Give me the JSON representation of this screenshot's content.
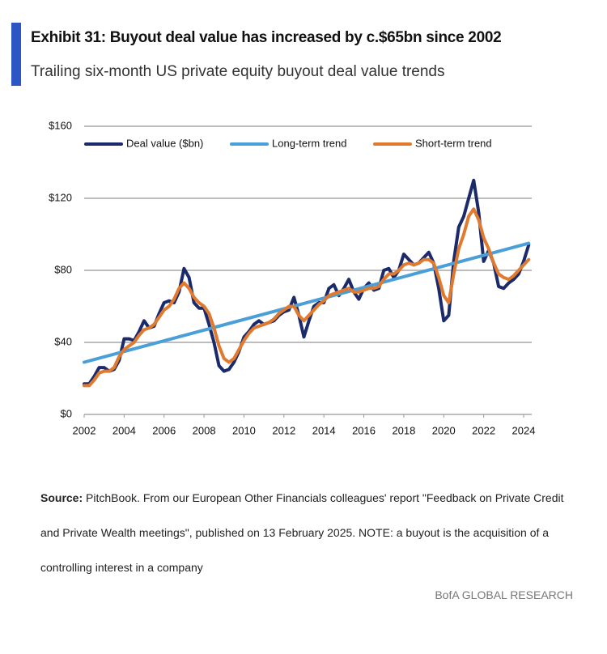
{
  "chart_data": {
    "type": "line",
    "title": "Exhibit 31: Buyout deal value has increased by c.$65bn since 2002",
    "subtitle": "Trailing six-month US private equity buyout deal value trends",
    "x": [
      2002,
      2002.25,
      2002.5,
      2002.75,
      2003,
      2003.25,
      2003.5,
      2003.75,
      2004,
      2004.25,
      2004.5,
      2004.75,
      2005,
      2005.25,
      2005.5,
      2005.75,
      2006,
      2006.25,
      2006.5,
      2006.75,
      2007,
      2007.25,
      2007.5,
      2007.75,
      2008,
      2008.25,
      2008.5,
      2008.75,
      2009,
      2009.25,
      2009.5,
      2009.75,
      2010,
      2010.25,
      2010.5,
      2010.75,
      2011,
      2011.25,
      2011.5,
      2011.75,
      2012,
      2012.25,
      2012.5,
      2012.75,
      2013,
      2013.25,
      2013.5,
      2013.75,
      2014,
      2014.25,
      2014.5,
      2014.75,
      2015,
      2015.25,
      2015.5,
      2015.75,
      2016,
      2016.25,
      2016.5,
      2016.75,
      2017,
      2017.25,
      2017.5,
      2017.75,
      2018,
      2018.25,
      2018.5,
      2018.75,
      2019,
      2019.25,
      2019.5,
      2019.75,
      2020,
      2020.25,
      2020.5,
      2020.75,
      2021,
      2021.25,
      2021.5,
      2021.75,
      2022,
      2022.25,
      2022.5,
      2022.75,
      2023,
      2023.25,
      2023.5,
      2023.75,
      2024,
      2024.25
    ],
    "series": [
      {
        "name": "Deal value ($bn)",
        "color": "#1b2a6b",
        "values": [
          17,
          17,
          21,
          26,
          26,
          24,
          25,
          30,
          42,
          42,
          41,
          46,
          52,
          48,
          49,
          56,
          62,
          63,
          62,
          68,
          81,
          76,
          62,
          59,
          59,
          50,
          40,
          27,
          24,
          25,
          29,
          35,
          43,
          46,
          50,
          52,
          50,
          51,
          52,
          55,
          57,
          58,
          65,
          55,
          43,
          52,
          60,
          62,
          62,
          70,
          72,
          66,
          70,
          75,
          68,
          64,
          70,
          73,
          69,
          70,
          80,
          81,
          76,
          80,
          89,
          86,
          83,
          84,
          87,
          90,
          84,
          70,
          52,
          55,
          85,
          104,
          110,
          120,
          130,
          112,
          85,
          91,
          84,
          71,
          70,
          73,
          75,
          78,
          85,
          94
        ]
      },
      {
        "name": "Long-term trend",
        "color": "#4a9fd8",
        "x": [
          2002,
          2024.25
        ],
        "values": [
          29,
          95
        ]
      },
      {
        "name": "Short-term trend",
        "color": "#e07a2f",
        "values": [
          16,
          16,
          19,
          23,
          24,
          24,
          26,
          32,
          36,
          38,
          40,
          44,
          47,
          48,
          50,
          54,
          58,
          60,
          64,
          70,
          73,
          70,
          65,
          62,
          60,
          56,
          48,
          38,
          31,
          29,
          31,
          36,
          41,
          45,
          48,
          49,
          50,
          51,
          53,
          56,
          58,
          60,
          60,
          55,
          52,
          55,
          58,
          61,
          63,
          66,
          67,
          68,
          69,
          70,
          68,
          68,
          69,
          70,
          70,
          71,
          75,
          78,
          78,
          80,
          83,
          84,
          83,
          84,
          86,
          86,
          84,
          76,
          66,
          62,
          78,
          92,
          100,
          110,
          114,
          108,
          98,
          92,
          84,
          78,
          76,
          75,
          77,
          80,
          83,
          86
        ]
      }
    ],
    "xlim": [
      2002,
      2024.45
    ],
    "xticks": [
      2002,
      2004,
      2006,
      2008,
      2010,
      2012,
      2014,
      2016,
      2018,
      2020,
      2022,
      2024
    ],
    "ylim": [
      0,
      160
    ],
    "yticks": [
      {
        "value": 0,
        "label": "$0"
      },
      {
        "value": 40,
        "label": "$40"
      },
      {
        "value": 80,
        "label": "$80"
      },
      {
        "value": 120,
        "label": "$120"
      },
      {
        "value": 160,
        "label": "$160"
      }
    ],
    "grid": true,
    "legend": "top",
    "source_label": "Source:",
    "source_text": "PitchBook. From our European Other Financials colleagues' report \"Feedback on Private Credit and Private Wealth meetings\", published on 13 February 2025. NOTE: a buyout is the acquisition of a controlling interest in a company",
    "footer": "BofA GLOBAL RESEARCH"
  }
}
